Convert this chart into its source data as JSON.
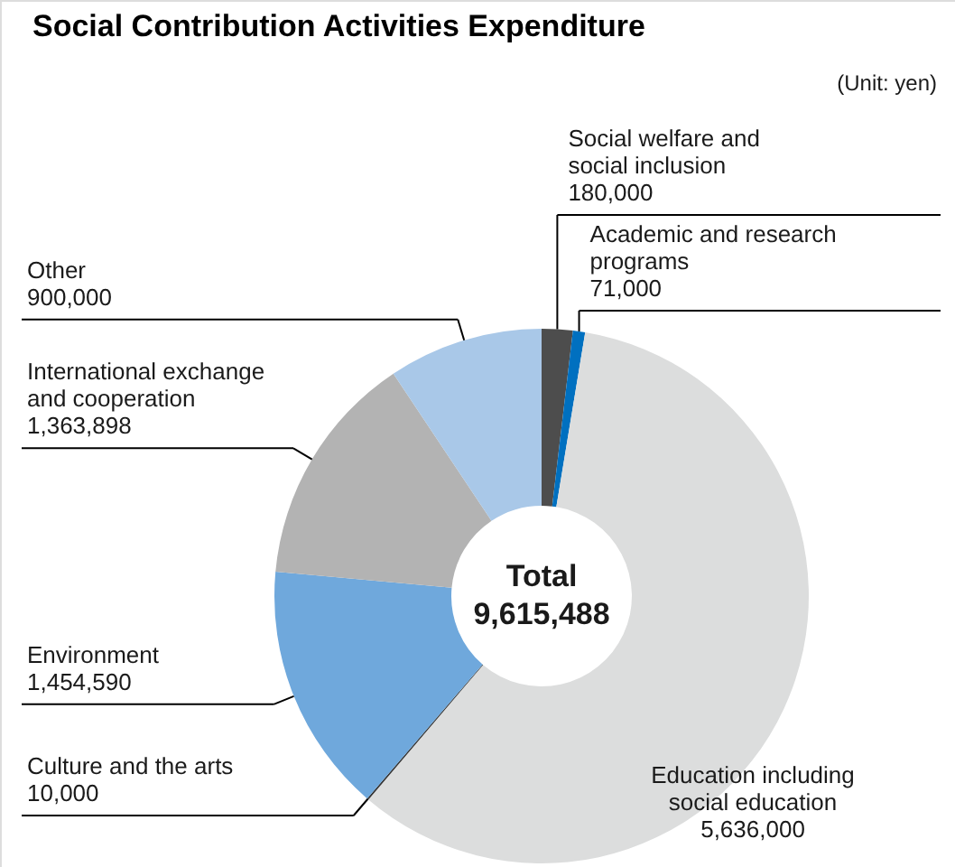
{
  "chart_data": {
    "type": "donut",
    "title": "Social Contribution Activities Expenditure",
    "annotations": [
      "(Unit: yen)",
      "Total",
      "9,615,488"
    ],
    "categories": [
      "Social welfare and social inclusion",
      "Academic and research programs",
      "Education including social education",
      "Culture and the arts",
      "Environment",
      "International exchange and cooperation",
      "Other"
    ],
    "values": [
      180000,
      71000,
      5636000,
      10000,
      1454590,
      1363898,
      900000
    ],
    "colors": [
      "#4d4d4d",
      "#0070c0",
      "#dcdddd",
      "#333333",
      "#6fa8dc",
      "#b3b3b3",
      "#a9c8e8"
    ],
    "value_labels": [
      "180,000",
      "71,000",
      "5,636,000",
      "10,000",
      "1,454,590",
      "1,363,898",
      "900,000"
    ],
    "legend": false
  }
}
